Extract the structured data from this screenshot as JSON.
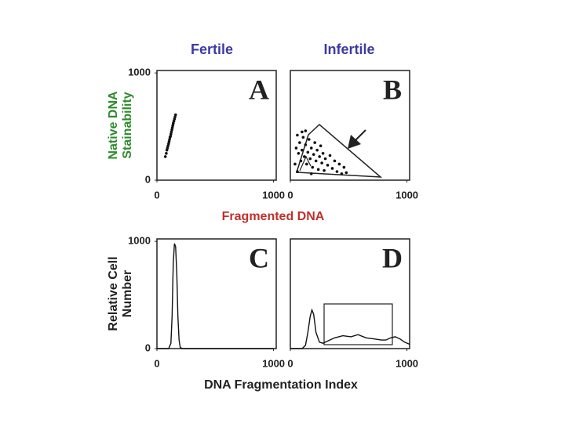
{
  "columns": [
    "Fertile",
    "Infertile"
  ],
  "labels": {
    "top_y": [
      "Native DNA",
      "Stainability"
    ],
    "top_x": "Fragmented DNA",
    "bottom_y": [
      "Relative Cell",
      "Number"
    ],
    "bottom_x": "DNA Fragmentation Index"
  },
  "chart_data": [
    {
      "type": "scatter",
      "title": "A",
      "color": "#111111",
      "x": [
        72,
        80,
        85,
        90,
        95,
        100,
        104,
        108,
        112,
        116,
        120,
        124,
        128,
        132,
        136,
        140,
        145,
        150,
        155,
        160
      ],
      "values": [
        220,
        250,
        280,
        300,
        320,
        340,
        360,
        380,
        400,
        410,
        430,
        450,
        470,
        490,
        510,
        530,
        550,
        570,
        590,
        610
      ],
      "xlim": [
        0,
        1023
      ],
      "ylim": [
        0,
        1023
      ],
      "xticks": [
        0,
        1000
      ],
      "yticks": [
        0,
        1000
      ]
    },
    {
      "type": "scatter",
      "title": "B",
      "color": "#111111",
      "x": [
        40,
        50,
        60,
        70,
        80,
        90,
        100,
        110,
        120,
        130,
        140,
        150,
        160,
        170,
        180,
        190,
        200,
        210,
        220,
        230,
        240,
        250,
        260,
        270,
        280,
        290,
        300,
        320,
        340,
        360,
        380,
        400,
        420,
        440,
        460,
        480,
        100,
        130,
        60,
        180
      ],
      "values": [
        150,
        300,
        420,
        250,
        350,
        180,
        280,
        400,
        220,
        330,
        150,
        260,
        380,
        200,
        300,
        120,
        240,
        350,
        180,
        280,
        100,
        220,
        320,
        160,
        250,
        90,
        200,
        140,
        230,
        110,
        180,
        80,
        150,
        60,
        120,
        70,
        450,
        460,
        80,
        60
      ],
      "xlim": [
        0,
        1023
      ],
      "ylim": [
        0,
        1023
      ],
      "xticks": [
        0,
        1000
      ]
    },
    {
      "type": "histogram-line",
      "title": "C",
      "color": "#111111",
      "x": [
        0,
        100,
        120,
        130,
        140,
        150,
        160,
        170,
        180,
        190,
        200,
        220,
        400,
        1000
      ],
      "values": [
        0,
        0,
        50,
        300,
        800,
        980,
        950,
        700,
        300,
        80,
        10,
        0,
        0,
        0
      ],
      "xlim": [
        0,
        1023
      ],
      "ylim": [
        0,
        1023
      ],
      "xticks": [
        0,
        1000
      ],
      "yticks": [
        0,
        1000
      ]
    },
    {
      "type": "histogram-line",
      "title": "D",
      "color": "#111111",
      "x": [
        0,
        100,
        130,
        150,
        170,
        185,
        200,
        220,
        250,
        280,
        320,
        380,
        450,
        520,
        580,
        650,
        720,
        780,
        820,
        860,
        900,
        940,
        980,
        1023
      ],
      "values": [
        0,
        0,
        30,
        150,
        300,
        360,
        320,
        150,
        60,
        50,
        70,
        100,
        120,
        110,
        130,
        100,
        90,
        80,
        80,
        100,
        110,
        90,
        60,
        40
      ],
      "xlim": [
        0,
        1023
      ],
      "ylim": [
        0,
        1023
      ],
      "xticks": [
        0,
        1000
      ]
    }
  ]
}
